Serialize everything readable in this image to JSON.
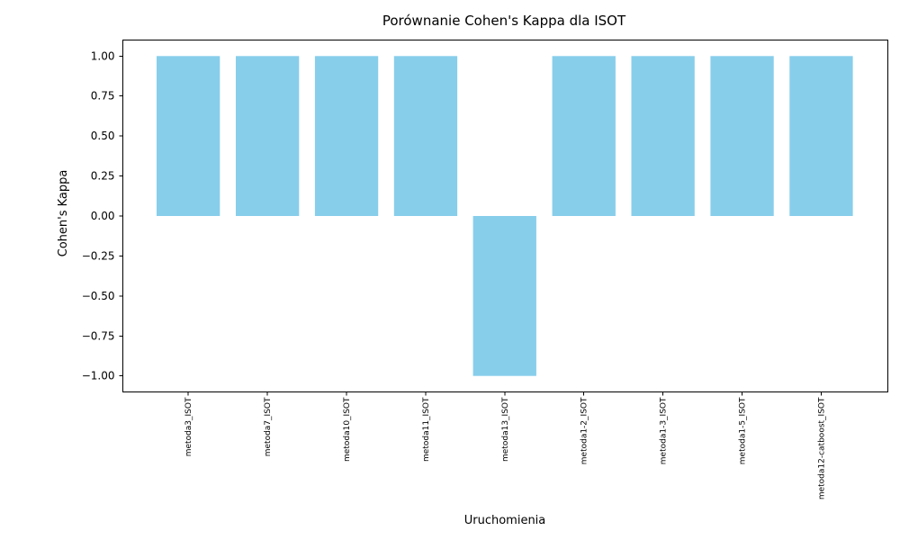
{
  "chart_data": {
    "type": "bar",
    "title": "Porównanie Cohen's Kappa dla ISOT",
    "xlabel": "Uruchomienia",
    "ylabel": "Cohen's Kappa",
    "categories": [
      "metoda3_ISOT",
      "metoda7_ISOT",
      "metoda10_ISOT",
      "metoda11_ISOT",
      "metoda13_ISOT",
      "metoda1-2_ISOT",
      "metoda1-3_ISOT",
      "metoda1-5_ISOT",
      "metoda12-catboost_ISOT"
    ],
    "values": [
      1.0,
      1.0,
      1.0,
      1.0,
      -1.0,
      1.0,
      1.0,
      1.0,
      1.0
    ],
    "ylim": [
      -1.1,
      1.1
    ],
    "yticks": [
      "1.00",
      "0.75",
      "0.50",
      "0.25",
      "0.00",
      "−0.25",
      "−0.50",
      "−0.75",
      "−1.00"
    ],
    "ytick_values": [
      1.0,
      0.75,
      0.5,
      0.25,
      0.0,
      -0.25,
      -0.5,
      -0.75,
      -1.0
    ],
    "x_tick_rotation": "vertical",
    "grid": false,
    "legend": false,
    "bar_color": "#87CEEB",
    "axis_color": "#000000"
  }
}
